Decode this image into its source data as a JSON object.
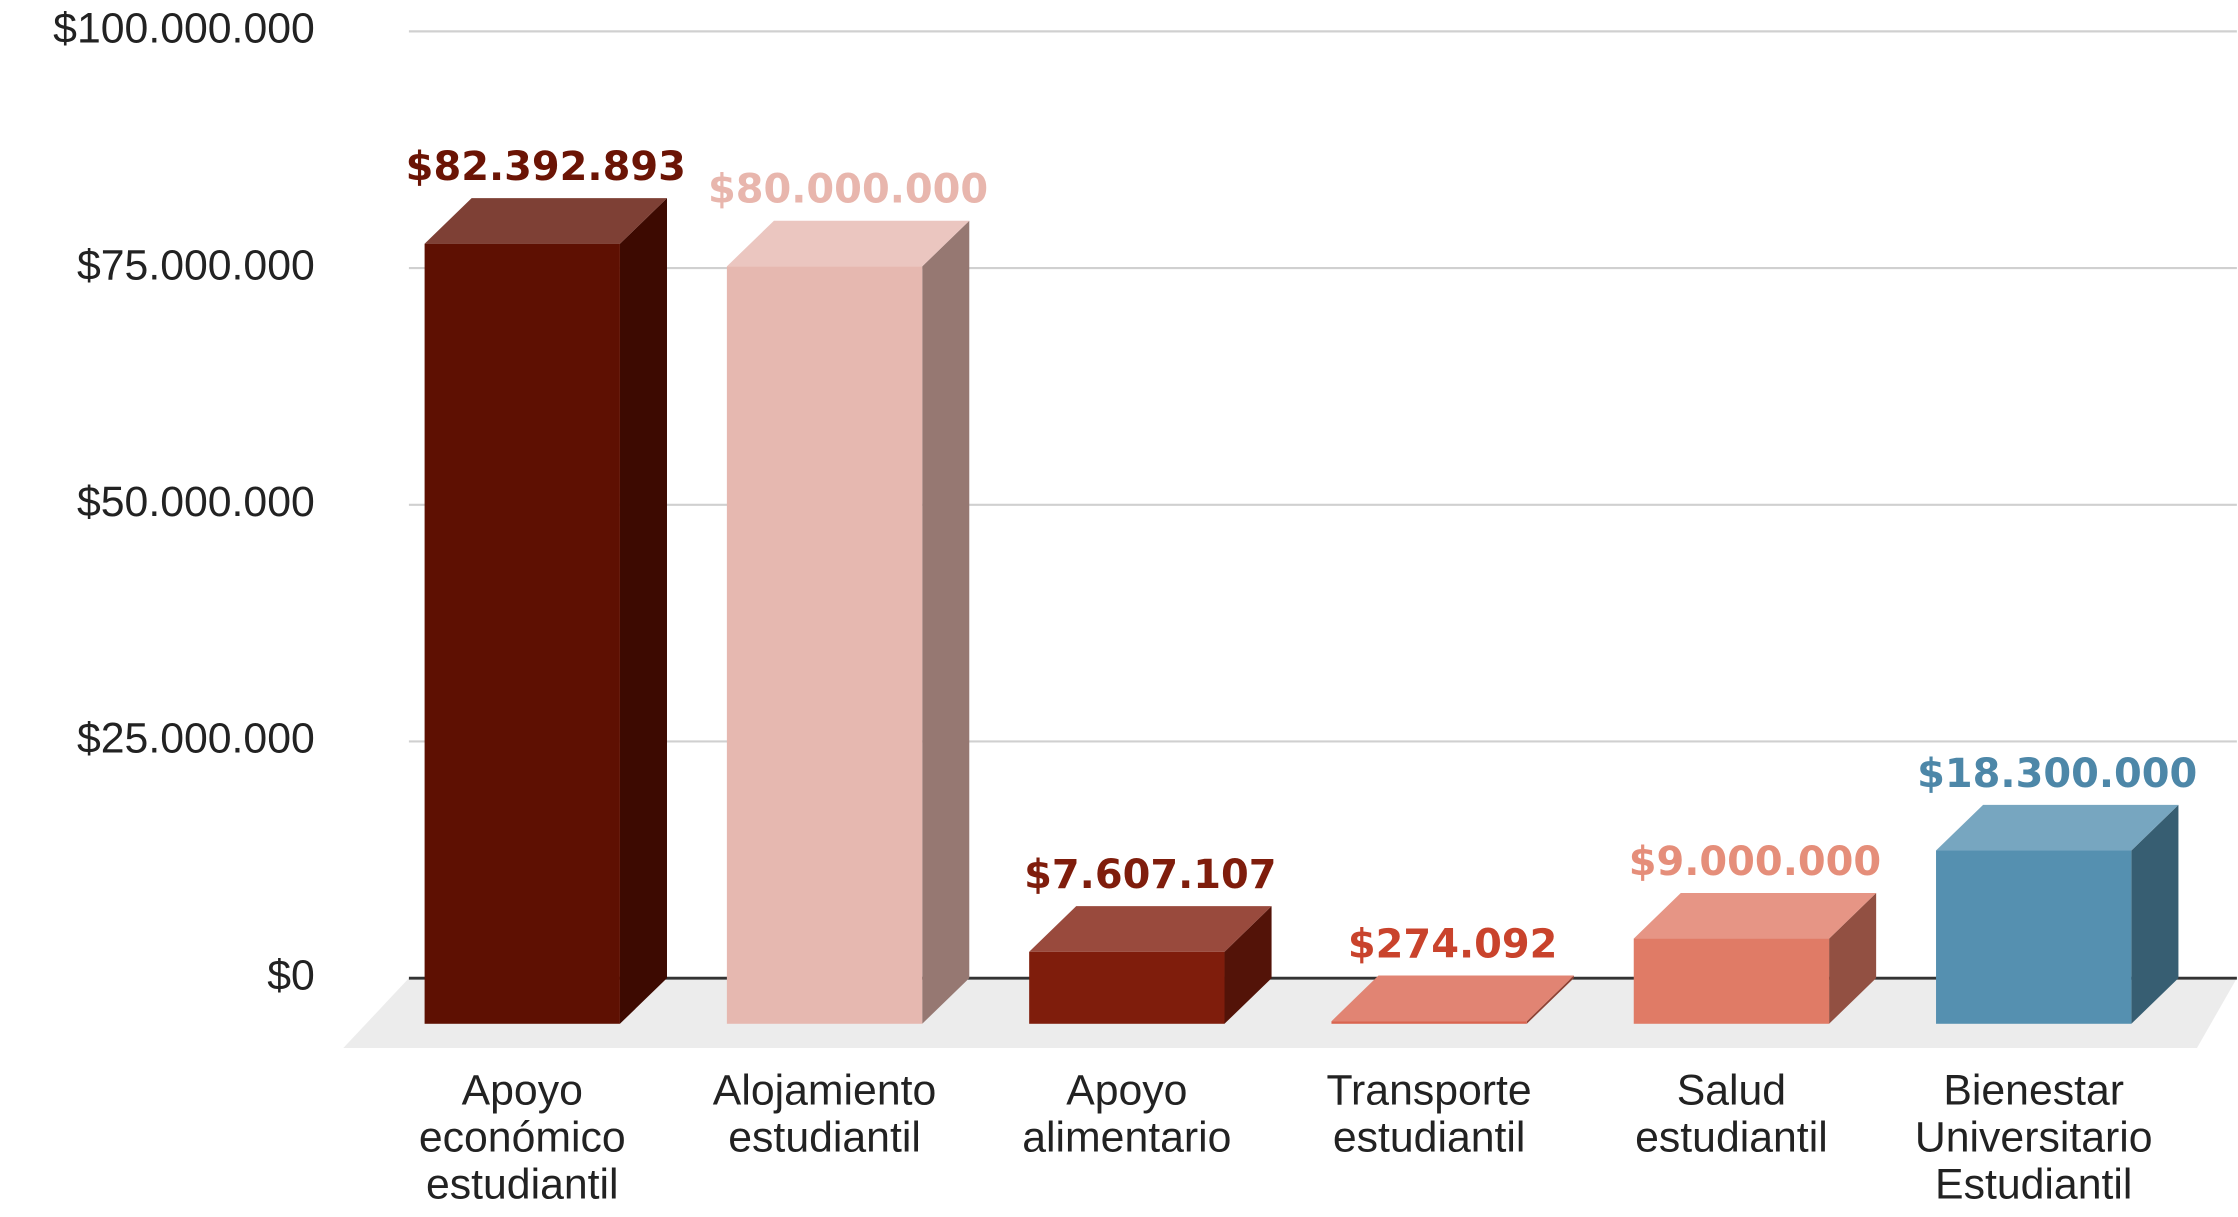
{
  "chart_data": {
    "type": "bar3d",
    "categories": [
      "Apoyo económico estudiantil",
      "Alojamiento estudiantil",
      "Apoyo alimentario",
      "Transporte estudiantil",
      "Salud estudiantil",
      "Bienestar Universitario Estudiantil"
    ],
    "values": [
      82392893,
      80000000,
      7607107,
      274092,
      9000000,
      18300000
    ],
    "value_labels": [
      "$82.392.893",
      "$80.000.000",
      "$7.607.107",
      "$274.092",
      "$9.000.000",
      "$18.300.000"
    ],
    "colors": [
      "#5e1002",
      "#e6b8b0",
      "#7f1d0c",
      "#d96550",
      "#e07b66",
      "#5590b0"
    ],
    "value_label_colors": [
      "#6b1405",
      "#e8b6ad",
      "#7f1d0c",
      "#c9432c",
      "#e58e7a",
      "#4d87a8"
    ],
    "ylim": [
      0,
      100000000
    ],
    "yticks": [
      {
        "value": 0,
        "label": "$0"
      },
      {
        "value": 25000000,
        "label": "$25.000.000"
      },
      {
        "value": 50000000,
        "label": "$50.000.000"
      },
      {
        "value": 75000000,
        "label": "$75.000.000"
      },
      {
        "value": 100000000,
        "label": "$100.000.000"
      }
    ],
    "grid": true
  }
}
